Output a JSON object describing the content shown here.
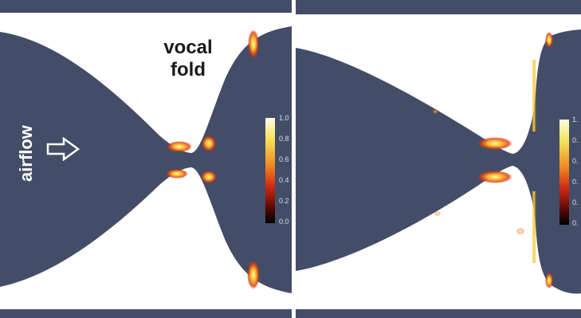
{
  "labels": {
    "vocal_line1": "vocal",
    "vocal_line2": "fold",
    "airflow": "airflow"
  },
  "colorbar_left": {
    "ticks": [
      "1.0",
      "0.8",
      "0.6",
      "0.4",
      "0.2",
      "0.0"
    ]
  },
  "colorbar_right": {
    "ticks": [
      "1.",
      "0.",
      "0.",
      "0.",
      "0.",
      "0."
    ]
  },
  "colors": {
    "geometry": "#444d67",
    "background": "#ffffff",
    "cbar_top": "#fdfde6",
    "cbar_mid": "#e8401a",
    "cbar_bottom": "#000000"
  },
  "icons": {
    "flow_arrow": "right-arrow-outline-icon"
  }
}
